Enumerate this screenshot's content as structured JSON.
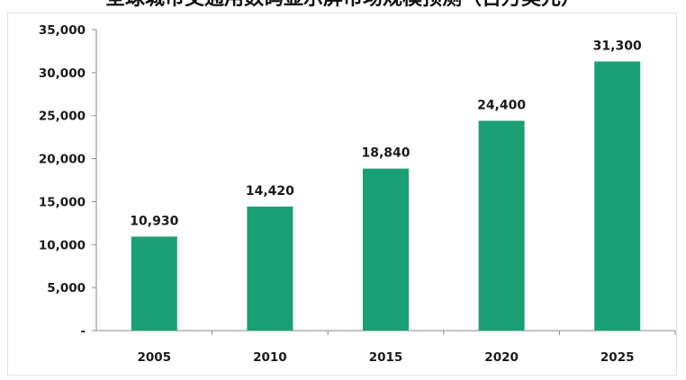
{
  "colors": {
    "bar": "#1b9f74",
    "axis": "#8a8a8a",
    "text": "#1a1a1a"
  },
  "chart_data": {
    "type": "bar",
    "title": "全球城市交通用数码显示屏市场规模预测（百万美元）",
    "xlabel": "",
    "ylabel": "",
    "categories": [
      "2005",
      "2010",
      "2015",
      "2020",
      "2025"
    ],
    "values": [
      10930,
      14420,
      18840,
      24400,
      31300
    ],
    "value_labels": [
      "10,930",
      "14,420",
      "18,840",
      "24,400",
      "31,300"
    ],
    "ylim": [
      0,
      35000
    ],
    "yticks": [
      0,
      5000,
      10000,
      15000,
      20000,
      25000,
      30000,
      35000
    ],
    "ytick_labels": [
      "-",
      "5,000",
      "10,000",
      "15,000",
      "20,000",
      "25,000",
      "30,000",
      "35,000"
    ],
    "grid": false,
    "legend": "none"
  }
}
